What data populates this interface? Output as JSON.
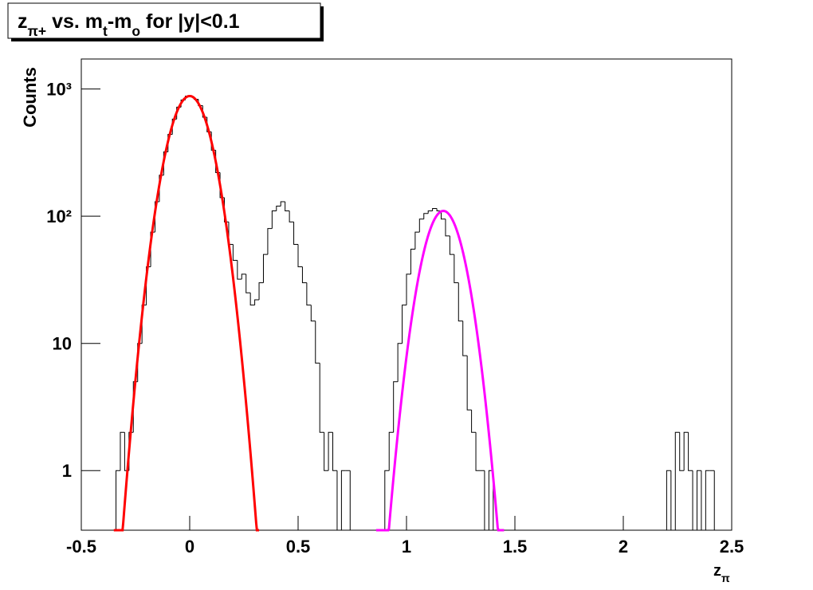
{
  "chart_data": {
    "type": "histogram",
    "title_parts": [
      {
        "text": "z"
      },
      {
        "text": "π+",
        "sub": true
      },
      {
        "text": " vs. m"
      },
      {
        "text": "t",
        "sub": true
      },
      {
        "text": "-m"
      },
      {
        "text": "o",
        "sub": true
      },
      {
        "text": " for |y|<0.1"
      }
    ],
    "xlabel_parts": [
      {
        "text": "z"
      },
      {
        "text": "π",
        "sub": true
      }
    ],
    "ylabel": "Counts",
    "log_y": true,
    "color": "#000000",
    "xlim": [
      -0.5,
      2.5
    ],
    "xticks": [
      -0.5,
      0,
      0.5,
      1,
      1.5,
      2,
      2.5
    ],
    "ylim": [
      0.34,
      1720
    ],
    "yticks": [
      1,
      10,
      {
        "value": 100,
        "label": "10²"
      },
      {
        "value": 1000,
        "label": "10³"
      }
    ],
    "bins": [
      -0.5,
      -0.48,
      -0.46,
      -0.44,
      -0.42,
      -0.4,
      -0.38,
      -0.36,
      -0.34,
      -0.32,
      -0.3,
      -0.28,
      -0.26,
      -0.24,
      -0.22,
      -0.2,
      -0.18,
      -0.16,
      -0.14,
      -0.12,
      -0.1,
      -0.08,
      -0.06,
      -0.04,
      -0.02,
      0,
      0.02,
      0.04,
      0.06,
      0.08,
      0.1,
      0.12,
      0.14,
      0.16,
      0.18,
      0.2,
      0.22,
      0.24,
      0.26,
      0.28,
      0.3,
      0.32,
      0.34,
      0.36,
      0.38,
      0.4,
      0.42,
      0.44,
      0.46,
      0.48,
      0.5,
      0.52,
      0.54,
      0.56,
      0.58,
      0.6,
      0.62,
      0.64,
      0.66,
      0.68,
      0.7,
      0.72,
      0.74,
      0.76,
      0.78,
      0.8,
      0.82,
      0.84,
      0.86,
      0.88,
      0.9,
      0.92,
      0.94,
      0.96,
      0.98,
      1,
      1.02,
      1.04,
      1.06,
      1.08,
      1.1,
      1.12,
      1.14,
      1.16,
      1.18,
      1.2,
      1.22,
      1.24,
      1.26,
      1.28,
      1.3,
      1.32,
      1.34,
      1.36,
      1.38,
      1.4,
      1.42,
      1.44,
      1.46,
      1.48,
      1.5,
      1.52,
      1.54,
      1.56,
      1.58,
      1.6,
      1.62,
      1.64,
      1.66,
      1.68,
      1.7,
      1.72,
      1.74,
      1.76,
      1.78,
      1.8,
      1.82,
      1.84,
      1.86,
      1.88,
      1.9,
      1.92,
      1.94,
      1.96,
      1.98,
      2,
      2.02,
      2.04,
      2.06,
      2.08,
      2.1,
      2.12,
      2.14,
      2.16,
      2.18,
      2.2,
      2.22,
      2.24,
      2.26,
      2.28,
      2.3,
      2.32,
      2.34,
      2.36,
      2.38,
      2.4,
      2.42,
      2.44,
      2.46,
      2.48,
      2.5
    ],
    "counts": [
      0,
      0,
      0,
      0,
      0,
      0,
      0,
      0,
      1,
      2,
      1,
      2,
      5,
      10,
      20,
      40,
      75,
      130,
      210,
      320,
      440,
      580,
      720,
      820,
      880,
      870,
      830,
      740,
      600,
      460,
      330,
      220,
      140,
      90,
      60,
      45,
      32,
      35,
      25,
      20,
      22,
      30,
      50,
      80,
      110,
      120,
      130,
      110,
      90,
      60,
      40,
      30,
      20,
      15,
      7,
      2,
      1,
      2,
      1,
      0,
      1,
      1,
      0,
      0,
      0,
      0,
      0,
      0,
      0,
      0,
      1,
      2,
      5,
      10,
      20,
      35,
      55,
      75,
      95,
      105,
      110,
      115,
      110,
      95,
      70,
      50,
      30,
      15,
      8,
      3,
      2,
      1,
      1,
      0,
      1,
      0,
      0,
      0,
      0,
      0,
      0,
      0,
      0,
      0,
      0,
      0,
      0,
      0,
      0,
      0,
      0,
      0,
      0,
      0,
      0,
      0,
      0,
      0,
      0,
      0,
      0,
      0,
      0,
      0,
      0,
      0,
      0,
      0,
      0,
      0,
      0,
      0,
      0,
      0,
      0,
      1,
      0,
      2,
      1,
      2,
      1,
      0,
      1,
      0,
      1,
      1,
      0,
      0,
      0,
      0
    ],
    "fits": [
      {
        "color": "#ff0000",
        "amplitude": 880,
        "mean": 0,
        "sigma": 0.078,
        "range": [
          -0.35,
          0.32
        ]
      },
      {
        "color": "#ff00ff",
        "amplitude": 110,
        "mean": 1.17,
        "sigma": 0.074,
        "range": [
          0.86,
          1.45
        ]
      }
    ]
  }
}
